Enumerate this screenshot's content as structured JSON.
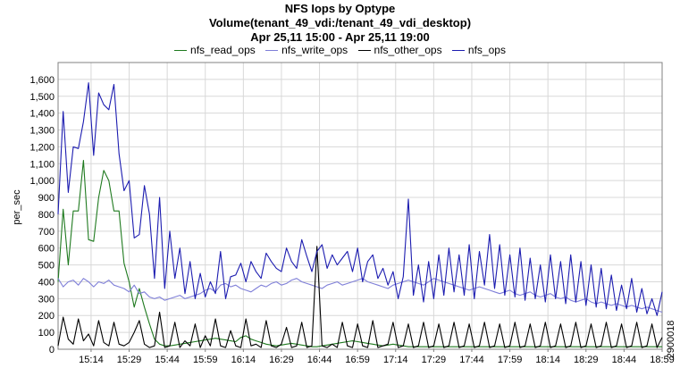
{
  "chart_data": {
    "type": "line",
    "title": "NFS Iops by Optype",
    "subtitle": "Volume(tenant_49_vdi:/tenant_49_vdi_desktop)",
    "time_range": "Apr 25,11 15:00 - Apr 25,11 19:00",
    "xlabel": "",
    "ylabel": "per_sec",
    "ylim": [
      0,
      1700
    ],
    "y_ticks": [
      "0",
      "100",
      "200",
      "300",
      "400",
      "500",
      "600",
      "700",
      "800",
      "900",
      "1,000",
      "1,100",
      "1,200",
      "1,300",
      "1,400",
      "1,500",
      "1,600"
    ],
    "x_ticks": [
      "15:14",
      "15:29",
      "15:44",
      "15:59",
      "16:14",
      "16:29",
      "16:44",
      "16:59",
      "17:14",
      "17:29",
      "17:44",
      "17:59",
      "18:14",
      "18:29",
      "18:44",
      "18:59"
    ],
    "x_start": "15:01",
    "x_end": "18:59",
    "x_step_minutes": 2,
    "grid": true,
    "legend_position": "top",
    "side_annotation": "2900018",
    "series": [
      {
        "name": "nfs_read_ops",
        "color": "#1f7a1f",
        "values": [
          400,
          830,
          500,
          820,
          820,
          1120,
          650,
          640,
          900,
          1060,
          1000,
          820,
          820,
          510,
          400,
          250,
          360,
          250,
          150,
          60,
          30,
          20,
          20,
          25,
          30,
          35,
          40,
          45,
          50,
          55,
          60,
          65,
          60,
          55,
          50,
          45,
          70,
          80,
          60,
          50,
          40,
          30,
          25,
          20,
          25,
          30,
          35,
          30,
          25,
          20,
          15,
          15,
          20,
          25,
          30,
          35,
          40,
          45,
          50,
          45,
          40,
          35,
          30,
          25,
          20,
          25,
          30,
          25,
          20,
          15,
          15,
          15,
          15,
          15,
          15,
          15,
          15,
          15,
          15,
          15,
          15,
          15,
          15,
          15,
          15,
          15,
          15,
          15,
          15,
          15,
          15,
          15,
          15,
          15,
          15,
          15,
          15,
          15,
          15,
          15,
          15,
          15,
          15,
          15,
          15,
          15,
          15,
          15,
          15,
          15,
          15,
          15,
          15,
          15,
          15,
          15,
          15,
          15,
          15,
          15
        ]
      },
      {
        "name": "nfs_write_ops",
        "color": "#7f7fd8",
        "values": [
          420,
          370,
          400,
          410,
          380,
          420,
          400,
          370,
          400,
          390,
          410,
          380,
          370,
          360,
          340,
          380,
          330,
          340,
          310,
          300,
          310,
          290,
          300,
          310,
          320,
          300,
          310,
          320,
          330,
          350,
          360,
          340,
          380,
          390,
          370,
          380,
          360,
          350,
          340,
          360,
          380,
          370,
          390,
          400,
          380,
          390,
          410,
          420,
          400,
          390,
          380,
          370,
          360,
          380,
          390,
          400,
          380,
          390,
          400,
          410,
          420,
          400,
          390,
          380,
          370,
          360,
          380,
          390,
          400,
          410,
          400,
          390,
          380,
          400,
          420,
          410,
          400,
          390,
          380,
          370,
          360,
          350,
          360,
          370,
          360,
          350,
          340,
          330,
          340,
          350,
          330,
          320,
          330,
          340,
          320,
          310,
          320,
          330,
          310,
          300,
          310,
          290,
          280,
          290,
          300,
          280,
          270,
          280,
          270,
          260,
          270,
          260,
          250,
          260,
          250,
          240,
          250,
          240,
          230,
          220
        ]
      },
      {
        "name": "nfs_other_ops",
        "color": "#000000",
        "values": [
          20,
          190,
          60,
          30,
          180,
          50,
          90,
          20,
          170,
          40,
          20,
          160,
          30,
          20,
          40,
          100,
          170,
          30,
          10,
          20,
          220,
          10,
          20,
          160,
          10,
          50,
          20,
          150,
          10,
          80,
          20,
          180,
          20,
          10,
          110,
          20,
          10,
          180,
          20,
          30,
          10,
          170,
          20,
          10,
          30,
          130,
          10,
          20,
          160,
          10,
          20,
          610,
          20,
          10,
          30,
          10,
          160,
          20,
          10,
          150,
          20,
          10,
          170,
          10,
          20,
          30,
          160,
          10,
          20,
          150,
          10,
          20,
          160,
          10,
          20,
          150,
          10,
          20,
          160,
          10,
          20,
          150,
          10,
          20,
          160,
          10,
          20,
          150,
          10,
          20,
          160,
          10,
          20,
          150,
          10,
          20,
          160,
          10,
          20,
          150,
          10,
          20,
          160,
          10,
          20,
          150,
          10,
          20,
          160,
          10,
          20,
          150,
          10,
          20,
          160,
          10,
          20,
          150,
          10,
          70
        ]
      },
      {
        "name": "nfs_ops",
        "color": "#1c1cb0",
        "values": [
          800,
          1410,
          930,
          1200,
          1190,
          1350,
          1580,
          1150,
          1520,
          1450,
          1420,
          1570,
          1160,
          940,
          1000,
          660,
          680,
          970,
          800,
          420,
          900,
          360,
          700,
          420,
          600,
          330,
          520,
          300,
          450,
          310,
          400,
          330,
          580,
          300,
          430,
          440,
          510,
          400,
          520,
          460,
          420,
          570,
          520,
          480,
          460,
          600,
          520,
          480,
          650,
          550,
          460,
          580,
          620,
          480,
          560,
          500,
          540,
          580,
          460,
          600,
          400,
          520,
          560,
          420,
          480,
          380,
          460,
          300,
          430,
          890,
          320,
          500,
          280,
          520,
          300,
          560,
          320,
          600,
          340,
          560,
          320,
          620,
          300,
          580,
          380,
          680,
          360,
          620,
          320,
          560,
          310,
          600,
          290,
          540,
          300,
          500,
          280,
          560,
          300,
          520,
          270,
          560,
          280,
          520,
          260,
          500,
          250,
          480,
          240,
          440,
          230,
          380,
          240,
          420,
          220,
          360,
          210,
          300,
          200,
          340
        ]
      }
    ]
  }
}
